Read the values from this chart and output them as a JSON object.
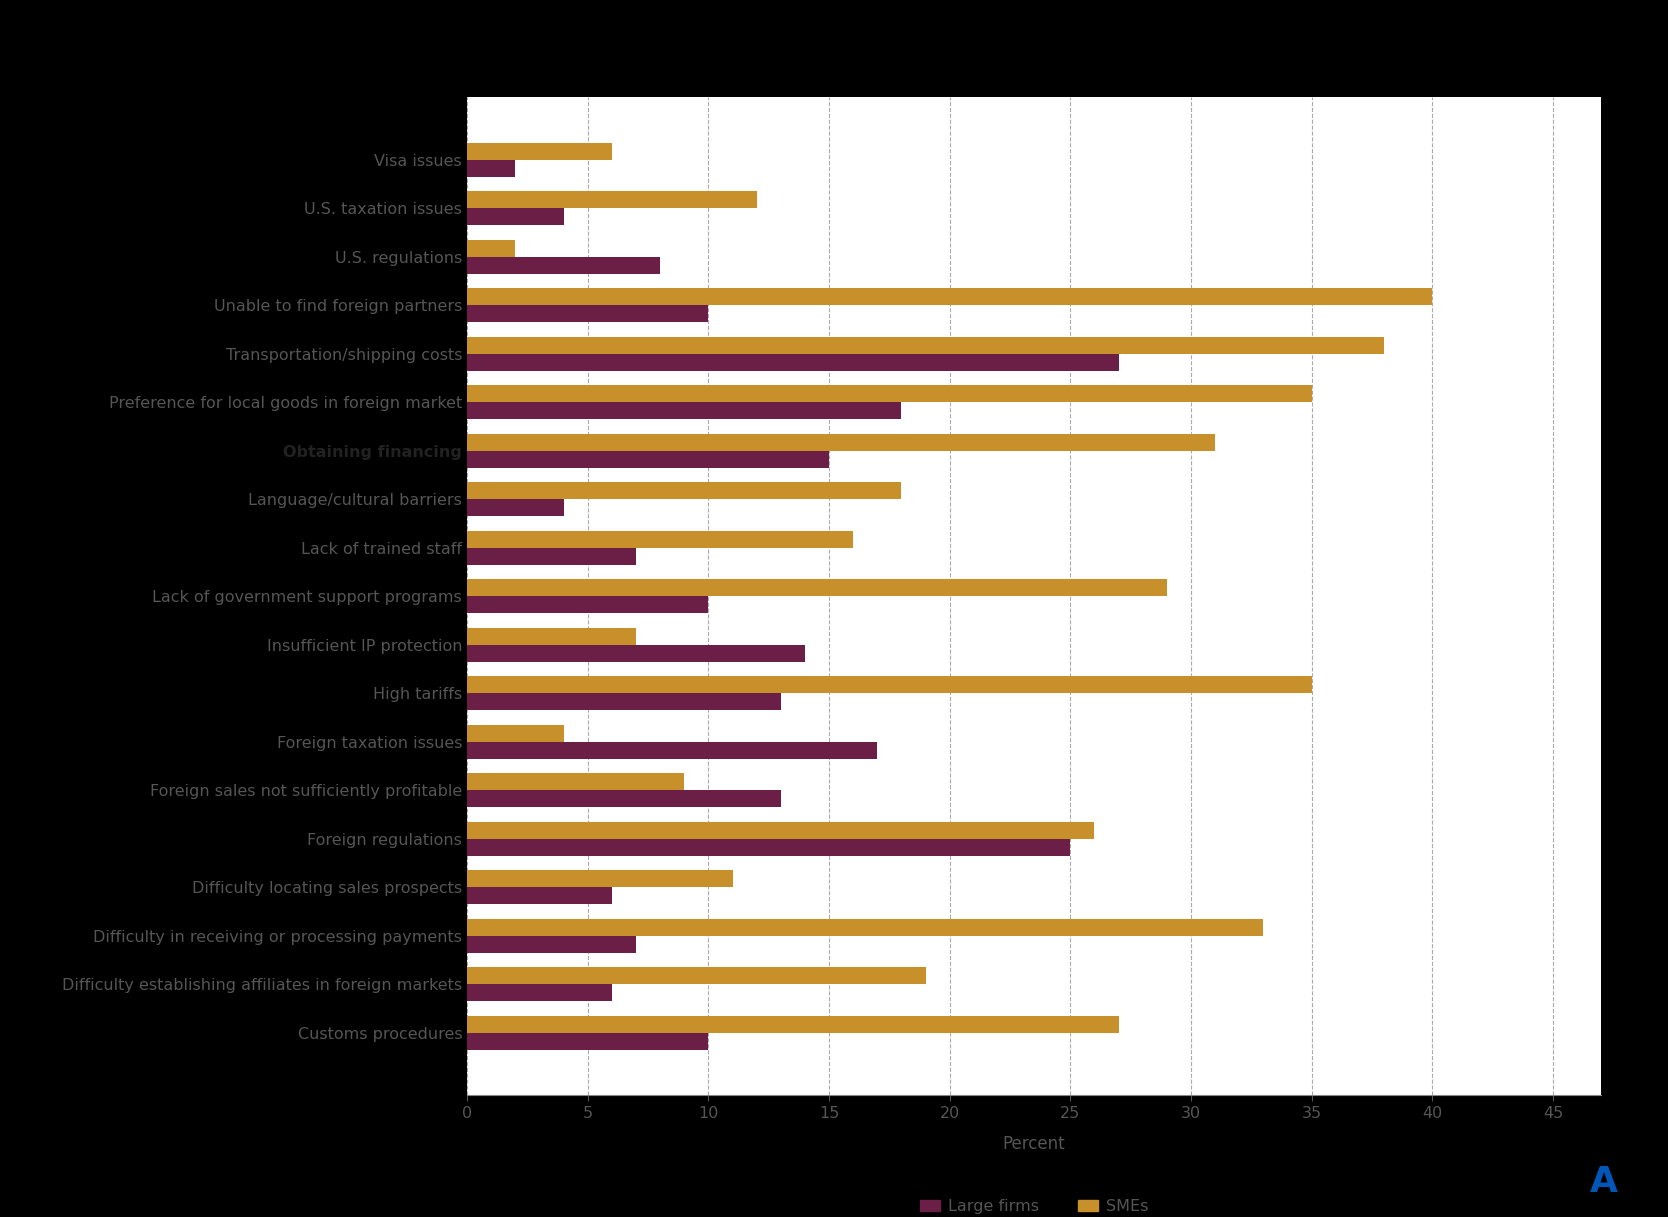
{
  "categories": [
    "Visa issues",
    "U.S. taxation issues",
    "U.S. regulations",
    "Unable to find foreign partners",
    "Transportation/shipping costs",
    "Preference for local goods in foreign market",
    "Obtaining financing",
    "Language/cultural barriers",
    "Lack of trained staff",
    "Lack of government support programs",
    "Insufficient IP protection",
    "High tariffs",
    "Foreign taxation issues",
    "Foreign sales not sufficiently profitable",
    "Foreign regulations",
    "Difficulty locating sales prospects",
    "Difficulty in receiving or processing payments",
    "Difficulty establishing affiliates in foreign markets",
    "Customs procedures"
  ],
  "bold_category": "Obtaining financing",
  "large_firms": [
    2,
    4,
    8,
    10,
    27,
    18,
    15,
    4,
    7,
    10,
    14,
    13,
    17,
    13,
    25,
    6,
    7,
    6,
    10
  ],
  "smes": [
    6,
    12,
    2,
    40,
    38,
    35,
    31,
    18,
    16,
    29,
    7,
    35,
    4,
    9,
    26,
    11,
    33,
    19,
    27
  ],
  "large_firm_color": "#6b1f47",
  "sme_color": "#c8902a",
  "plot_bg_color": "#ffffff",
  "outer_bg_color": "#1a1a1a",
  "chart_area_color": "#ffffff",
  "xlabel": "Percent",
  "xlim": [
    0,
    47
  ],
  "xticks": [
    0,
    5,
    10,
    15,
    20,
    25,
    30,
    35,
    40,
    45
  ],
  "legend_large": "Large firms",
  "legend_smes": "SMEs",
  "bar_height": 0.35,
  "grid_color": "#aaaaaa",
  "label_fontsize": 11.5,
  "tick_fontsize": 11.5,
  "xlabel_fontsize": 12,
  "label_color": "#555555",
  "tick_color": "#555555"
}
